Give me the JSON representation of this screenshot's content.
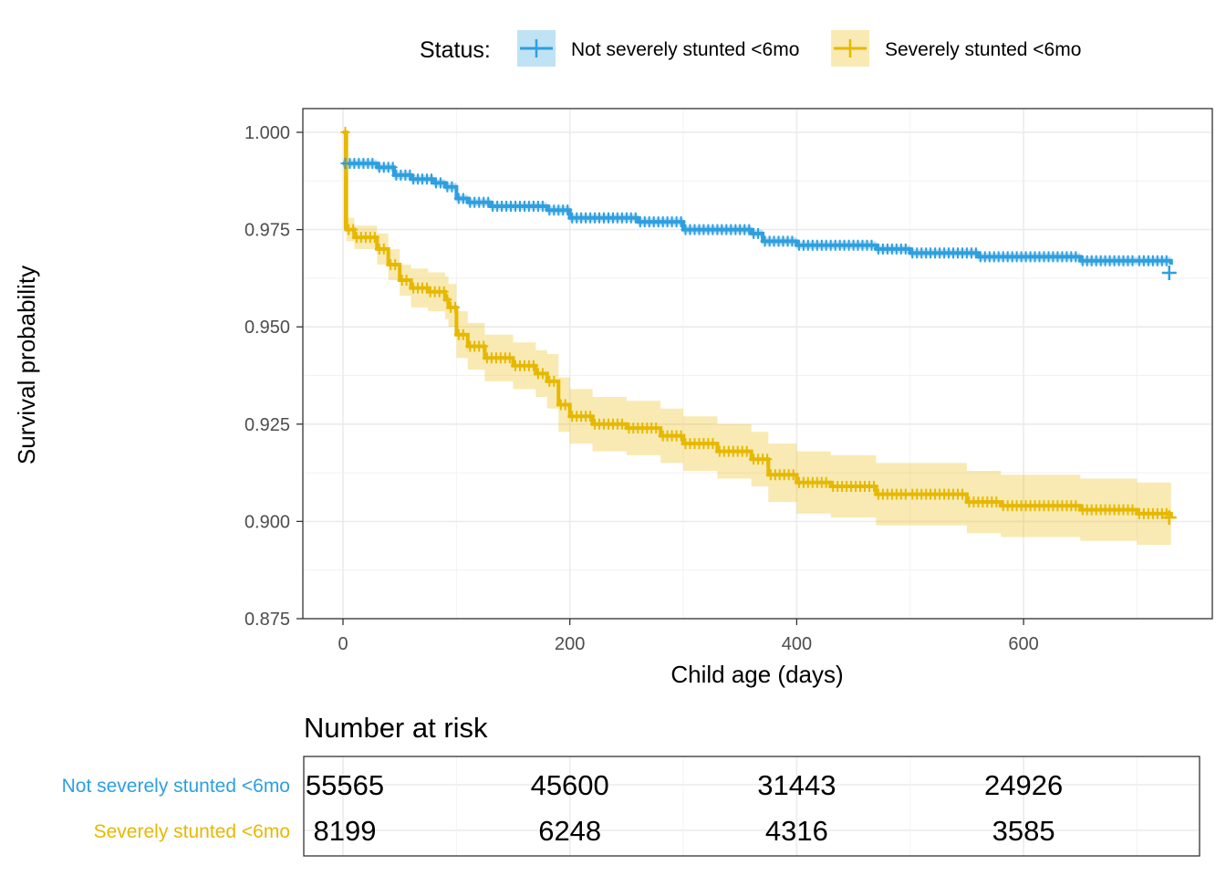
{
  "colors": {
    "not_severe": "#2E9FDF",
    "severe": "#E7B800",
    "grid": "#EBEBEB",
    "panel_border": "#333333"
  },
  "legend": {
    "title": "Status:",
    "items": [
      {
        "label": "Not severely stunted <6mo",
        "color": "#2E9FDF"
      },
      {
        "label": "Severely stunted <6mo",
        "color": "#E7B800"
      }
    ]
  },
  "chart_data": {
    "type": "line",
    "subtype": "kaplan-meier step curve with confidence band and censor marks",
    "xlabel": "Child age (days)",
    "ylabel": "Survival probability",
    "xlim": [
      0,
      730
    ],
    "ylim": [
      0.875,
      1.0
    ],
    "x_ticks": [
      0,
      200,
      400,
      600
    ],
    "x_tick_labels": [
      "0",
      "200",
      "400",
      "600"
    ],
    "y_ticks": [
      0.875,
      0.9,
      0.925,
      0.95,
      0.975,
      1.0
    ],
    "y_tick_labels": [
      "0.875",
      "0.900",
      "0.925",
      "0.950",
      "0.975",
      "1.000"
    ],
    "grid": true,
    "legend_position": "top",
    "series": [
      {
        "name": "Not severely stunted <6mo",
        "color": "#2E9FDF",
        "x": [
          0,
          30,
          45,
          60,
          80,
          90,
          100,
          110,
          130,
          180,
          200,
          260,
          300,
          360,
          370,
          400,
          470,
          500,
          560,
          600,
          650,
          700,
          730
        ],
        "y": [
          0.992,
          0.991,
          0.989,
          0.988,
          0.987,
          0.986,
          0.983,
          0.982,
          0.981,
          0.98,
          0.978,
          0.977,
          0.975,
          0.974,
          0.972,
          0.971,
          0.97,
          0.969,
          0.968,
          0.968,
          0.967,
          0.967,
          0.966
        ],
        "ci_upper": [
          0.993,
          0.992,
          0.99,
          0.989,
          0.988,
          0.987,
          0.984,
          0.983,
          0.982,
          0.981,
          0.979,
          0.978,
          0.976,
          0.975,
          0.973,
          0.972,
          0.971,
          0.97,
          0.969,
          0.969,
          0.968,
          0.968,
          0.967
        ],
        "ci_lower": [
          0.991,
          0.99,
          0.988,
          0.987,
          0.986,
          0.985,
          0.982,
          0.981,
          0.98,
          0.979,
          0.977,
          0.976,
          0.974,
          0.973,
          0.971,
          0.97,
          0.969,
          0.968,
          0.967,
          0.967,
          0.966,
          0.966,
          0.965
        ]
      },
      {
        "name": "Severely stunted <6mo",
        "color": "#E7B800",
        "x": [
          0,
          3,
          10,
          30,
          40,
          50,
          60,
          75,
          90,
          93,
          100,
          110,
          125,
          150,
          170,
          180,
          190,
          200,
          220,
          250,
          280,
          300,
          330,
          360,
          375,
          400,
          430,
          470,
          500,
          550,
          580,
          650,
          700,
          730
        ],
        "y": [
          1.0,
          0.975,
          0.973,
          0.97,
          0.966,
          0.962,
          0.96,
          0.959,
          0.957,
          0.955,
          0.948,
          0.945,
          0.942,
          0.94,
          0.938,
          0.936,
          0.93,
          0.927,
          0.925,
          0.924,
          0.922,
          0.92,
          0.918,
          0.916,
          0.912,
          0.91,
          0.909,
          0.907,
          0.907,
          0.905,
          0.904,
          0.903,
          0.902,
          0.901
        ],
        "ci_upper": [
          1.0,
          0.978,
          0.976,
          0.974,
          0.97,
          0.966,
          0.965,
          0.964,
          0.963,
          0.961,
          0.954,
          0.951,
          0.948,
          0.946,
          0.944,
          0.943,
          0.937,
          0.934,
          0.932,
          0.931,
          0.929,
          0.927,
          0.925,
          0.923,
          0.92,
          0.918,
          0.917,
          0.915,
          0.915,
          0.913,
          0.912,
          0.911,
          0.91,
          0.909
        ],
        "ci_lower": [
          1.0,
          0.972,
          0.97,
          0.966,
          0.962,
          0.958,
          0.955,
          0.954,
          0.952,
          0.95,
          0.942,
          0.939,
          0.936,
          0.934,
          0.932,
          0.929,
          0.923,
          0.92,
          0.918,
          0.917,
          0.915,
          0.913,
          0.911,
          0.909,
          0.905,
          0.902,
          0.901,
          0.899,
          0.899,
          0.897,
          0.896,
          0.895,
          0.894,
          0.893
        ]
      }
    ],
    "risk_table": {
      "title": "Number at risk",
      "times": [
        0,
        200,
        400,
        600
      ],
      "strata": [
        {
          "name": "Not severely stunted <6mo",
          "color": "#2E9FDF",
          "counts": [
            55565,
            45600,
            31443,
            24926
          ]
        },
        {
          "name": "Severely stunted <6mo",
          "color": "#E7B800",
          "counts": [
            8199,
            6248,
            4316,
            3585
          ]
        }
      ]
    }
  }
}
